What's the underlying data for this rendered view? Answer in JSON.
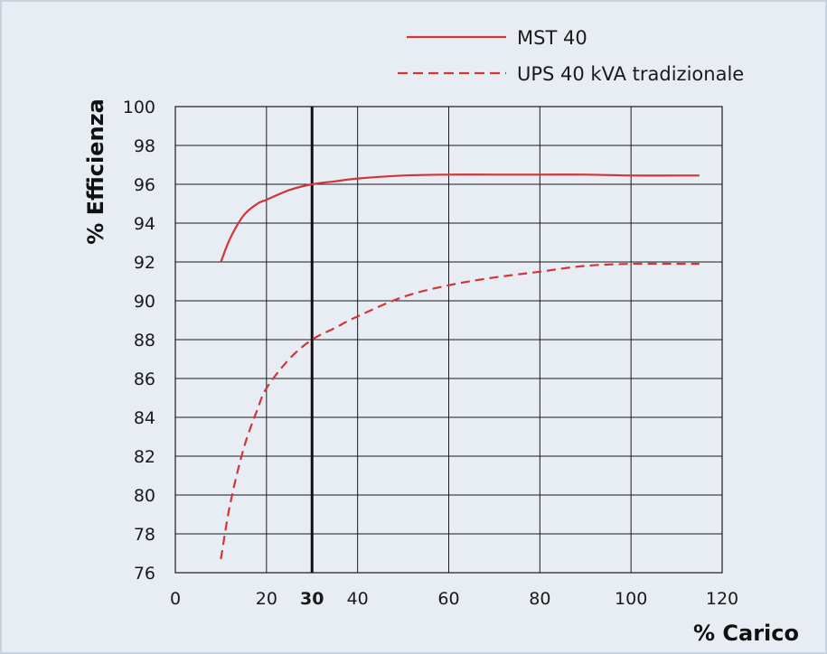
{
  "chart_data": {
    "type": "line",
    "xlabel": "% Carico",
    "ylabel": "% Efficienza",
    "xlim": [
      0,
      120
    ],
    "ylim": [
      76,
      100
    ],
    "x_ticks": [
      0,
      20,
      30,
      40,
      60,
      80,
      100,
      120
    ],
    "x_tick_labels": [
      "0",
      "20",
      "30",
      "40",
      "60",
      "80",
      "100",
      "120"
    ],
    "x_bold_tick": 30,
    "y_ticks": [
      76,
      78,
      80,
      82,
      84,
      86,
      88,
      90,
      92,
      94,
      96,
      98,
      100
    ],
    "y_tick_labels": [
      "76",
      "78",
      "80",
      "82",
      "84",
      "86",
      "88",
      "90",
      "92",
      "94",
      "96",
      "98",
      "100"
    ],
    "x_gridlines": [
      20,
      40,
      60,
      80,
      100
    ],
    "y_gridlines": [
      78,
      80,
      82,
      84,
      86,
      88,
      90,
      92,
      94,
      96,
      98
    ],
    "marker_line_x": 30,
    "grid": true,
    "legend_position": "top-right",
    "series": [
      {
        "name": "MST 40",
        "style": "solid",
        "color": "#d0353b",
        "x": [
          10,
          12,
          15,
          18,
          20,
          25,
          30,
          35,
          40,
          50,
          60,
          70,
          80,
          90,
          100,
          110,
          115
        ],
        "y": [
          92.0,
          93.2,
          94.4,
          95.0,
          95.2,
          95.7,
          96.0,
          96.15,
          96.3,
          96.45,
          96.5,
          96.5,
          96.5,
          96.5,
          96.45,
          96.45,
          96.45
        ]
      },
      {
        "name": "UPS 40 kVA tradizionale",
        "style": "dashed",
        "color": "#d0353b",
        "x": [
          10,
          12,
          15,
          18,
          20,
          25,
          30,
          35,
          40,
          50,
          60,
          70,
          80,
          90,
          100,
          110,
          115
        ],
        "y": [
          76.7,
          79.5,
          82.4,
          84.4,
          85.5,
          87.0,
          88.0,
          88.6,
          89.2,
          90.2,
          90.8,
          91.2,
          91.5,
          91.8,
          91.9,
          91.9,
          91.9
        ]
      }
    ]
  }
}
